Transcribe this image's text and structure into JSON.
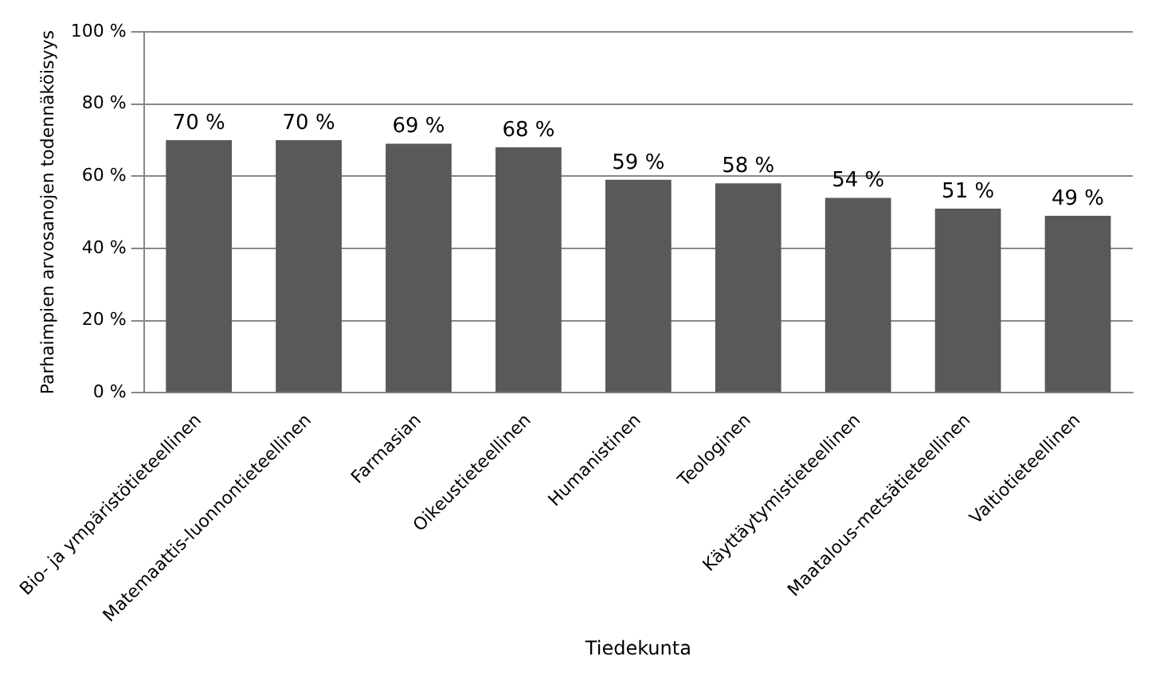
{
  "chart_data": {
    "type": "bar",
    "xlabel": "Tiedekunta",
    "ylabel": "Parhaimpien arvosanojen todennäköisyys",
    "categories": [
      "Bio- ja ympäristötieteellinen",
      "Matemaattis-luonnontieteellinen",
      "Farmasian",
      "Oikeustieteellinen",
      "Humanistinen",
      "Teologinen",
      "Käyttäytymistieteellinen",
      "Maatalous-metsätieteellinen",
      "Valtiotieteellinen"
    ],
    "values": [
      70,
      70,
      69,
      68,
      59,
      58,
      54,
      51,
      49
    ],
    "value_labels": [
      "70 %",
      "70 %",
      "69 %",
      "68 %",
      "59 %",
      "58 %",
      "54 %",
      "51 %",
      "49 %"
    ],
    "color": "#595959",
    "ylim": [
      0,
      100
    ],
    "yticks": [
      {
        "value": 0,
        "label": "0 %"
      },
      {
        "value": 20,
        "label": "20 %"
      },
      {
        "value": 40,
        "label": "40 %"
      },
      {
        "value": 60,
        "label": "60 %"
      },
      {
        "value": 80,
        "label": "80 %"
      },
      {
        "value": 100,
        "label": "100 %"
      }
    ],
    "grid": "y"
  }
}
